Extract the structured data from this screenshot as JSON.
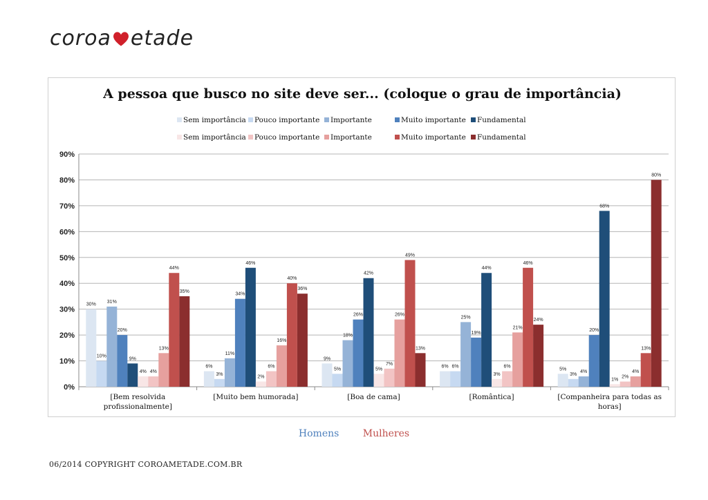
{
  "logo": {
    "text_left": "coroa",
    "text_right": "etade",
    "heart_color": "#d0202a"
  },
  "footer": {
    "homens": "Homens",
    "mulheres": "Mulheres",
    "homens_color": "#4f81bd",
    "mulheres_color": "#c0504d"
  },
  "copyright": "06/2014 COPYRIGHT COROAMETADE.COM.BR",
  "chart_data": {
    "type": "bar",
    "title": "A pessoa que busco no site deve ser... (coloque o grau de importância)",
    "ylim": [
      0,
      90
    ],
    "yticks": [
      "0%",
      "10%",
      "20%",
      "30%",
      "40%",
      "50%",
      "60%",
      "70%",
      "80%",
      "90%"
    ],
    "grid": true,
    "legend_placement": "top",
    "categories": [
      "[Bem resolvida profissionalmente]",
      "[Muito bem humorada]",
      "[Boa de cama]",
      "[Romântica]",
      "[Companheira para todas as horas]"
    ],
    "category_lines": [
      [
        "[Bem resolvida",
        "profissionalmente]"
      ],
      [
        "[Muito bem humorada]"
      ],
      [
        "[Boa de cama]"
      ],
      [
        "[Romântica]"
      ],
      [
        "[Companheira para todas as",
        "horas]"
      ]
    ],
    "series": [
      {
        "name": "Sem importância",
        "group": "Homens",
        "color": "#dce6f2",
        "values": [
          30,
          6,
          9,
          6,
          5
        ],
        "labels": [
          "30%",
          "6%",
          "9%",
          "6%",
          "5%"
        ]
      },
      {
        "name": "Pouco importante",
        "group": "Homens",
        "color": "#c6d9f1",
        "values": [
          10,
          3,
          5,
          6,
          3
        ],
        "labels": [
          "10%",
          "3%",
          "5%",
          "6%",
          "3%"
        ]
      },
      {
        "name": "Importante",
        "group": "Homens",
        "color": "#95b3d7",
        "values": [
          31,
          11,
          18,
          25,
          4
        ],
        "labels": [
          "31%",
          "11%",
          "18%",
          "25%",
          "4%"
        ]
      },
      {
        "name": "Muito importante",
        "group": "Homens",
        "color": "#4f81bd",
        "values": [
          20,
          34,
          26,
          19,
          20
        ],
        "labels": [
          "20%",
          "34%",
          "26%",
          "19%",
          "20%"
        ]
      },
      {
        "name": "Fundamental",
        "group": "Homens",
        "color": "#1f4e79",
        "values": [
          9,
          46,
          42,
          44,
          68
        ],
        "labels": [
          "9%",
          "46%",
          "42%",
          "44%",
          "68%"
        ]
      },
      {
        "name": "Sem importância",
        "group": "Mulheres",
        "color": "#f8e6e6",
        "values": [
          4,
          2,
          5,
          3,
          1
        ],
        "labels": [
          "4%",
          "2%",
          "5%",
          "3%",
          "1%"
        ]
      },
      {
        "name": "Pouco importante",
        "group": "Mulheres",
        "color": "#f2c4c4",
        "values": [
          4,
          6,
          7,
          6,
          2
        ],
        "labels": [
          "4%",
          "6%",
          "7%",
          "6%",
          "2%"
        ]
      },
      {
        "name": "Importante",
        "group": "Mulheres",
        "color": "#e6a09e",
        "values": [
          13,
          16,
          26,
          21,
          4
        ],
        "labels": [
          "13%",
          "16%",
          "26%",
          "21%",
          "4%"
        ]
      },
      {
        "name": "Muito importante",
        "group": "Mulheres",
        "color": "#c0504d",
        "values": [
          44,
          40,
          49,
          46,
          13
        ],
        "labels": [
          "44%",
          "40%",
          "49%",
          "46%",
          "13%"
        ]
      },
      {
        "name": "Fundamental",
        "group": "Mulheres",
        "color": "#8b2e2e",
        "values": [
          35,
          36,
          13,
          24,
          80
        ],
        "labels": [
          "35%",
          "36%",
          "13%",
          "24%",
          "80%"
        ]
      }
    ]
  }
}
